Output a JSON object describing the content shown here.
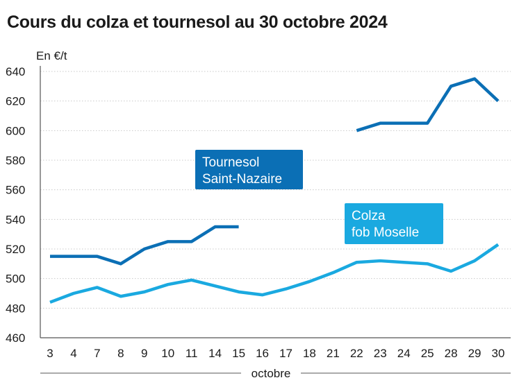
{
  "title": "Cours du colza et tournesol au 30 octobre 2024",
  "chart_data": {
    "type": "line",
    "title": "Cours du colza et tournesol au 30 octobre 2024",
    "ylabel": "En €/t",
    "xlabel": "octobre",
    "categories": [
      "3",
      "4",
      "7",
      "8",
      "9",
      "10",
      "11",
      "14",
      "15",
      "16",
      "17",
      "18",
      "21",
      "22",
      "23",
      "24",
      "25",
      "28",
      "29",
      "30"
    ],
    "ylim": [
      460,
      640
    ],
    "yticks": [
      460,
      480,
      500,
      520,
      540,
      560,
      580,
      600,
      620,
      640
    ],
    "grid": true,
    "series": [
      {
        "name": "Tournesol Saint-Nazaire",
        "name_lines": [
          "Tournesol",
          "Saint-Nazaire"
        ],
        "color": "#0b6fb5",
        "values": [
          515,
          515,
          515,
          510,
          520,
          525,
          525,
          535,
          535,
          null,
          null,
          null,
          null,
          600,
          605,
          605,
          605,
          630,
          635,
          620
        ]
      },
      {
        "name": "Colza fob Moselle",
        "name_lines": [
          "Colza",
          "fob Moselle"
        ],
        "color": "#1aa9e0",
        "values": [
          484,
          490,
          494,
          488,
          491,
          496,
          499,
          495,
          491,
          489,
          493,
          498,
          504,
          511,
          512,
          511,
          510,
          505,
          512,
          523
        ]
      }
    ]
  }
}
